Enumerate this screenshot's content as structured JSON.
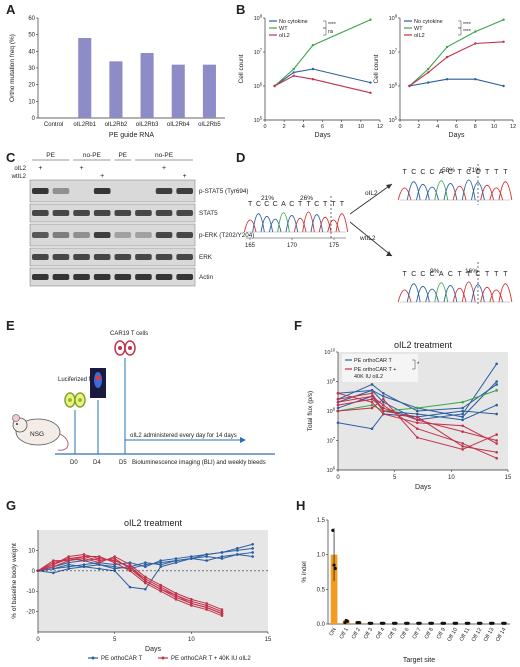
{
  "panels": {
    "A": {
      "letter": "A",
      "chart_data": {
        "type": "bar",
        "categories": [
          "Control",
          "oIL2Rb1",
          "oIL2Rb2",
          "oIL2Rb3",
          "oIL2Rb4",
          "oIL2Rb5"
        ],
        "values": [
          0,
          48,
          34,
          39,
          32,
          32
        ],
        "xlabel": "PE guide RNA",
        "ylabel": "Ortho mutation freq (%)",
        "ylim": [
          0,
          60
        ],
        "yticks": [
          0,
          10,
          20,
          30,
          40,
          50,
          60
        ],
        "color": "#8e8cc7"
      }
    },
    "B": {
      "letter": "B",
      "chart_data": [
        {
          "type": "line",
          "xlabel": "Days",
          "ylabel": "Cell count",
          "xlim": [
            0,
            12
          ],
          "xticks": [
            0,
            2,
            4,
            6,
            8,
            10,
            12
          ],
          "yticks": [
            "10^5",
            "10^6",
            "10^7",
            "10^8"
          ],
          "log_y": true,
          "legend": [
            "No cytokine",
            "WT",
            "oIL2"
          ],
          "sig": [
            "****",
            "ns"
          ],
          "series": [
            {
              "name": "No cytokine",
              "color": "#2c5fa0",
              "x": [
                1,
                3,
                5,
                11
              ],
              "y": [
                6.0,
                6.4,
                6.5,
                6.1
              ]
            },
            {
              "name": "WT",
              "color": "#3aa64a",
              "x": [
                1,
                3,
                5,
                11
              ],
              "y": [
                6.0,
                6.5,
                7.2,
                7.95
              ]
            },
            {
              "name": "oIL2",
              "color": "#c2324a",
              "x": [
                1,
                3,
                5,
                11
              ],
              "y": [
                6.0,
                6.3,
                6.2,
                5.8
              ]
            }
          ]
        },
        {
          "type": "line",
          "xlabel": "Days",
          "ylabel": "Cell count",
          "xlim": [
            0,
            12
          ],
          "xticks": [
            0,
            2,
            4,
            6,
            8,
            10,
            12
          ],
          "yticks": [
            "10^5",
            "10^6",
            "10^7",
            "10^8"
          ],
          "log_y": true,
          "legend": [
            "No cytokine",
            "WT",
            "oIL2"
          ],
          "sig": [
            "****",
            "****"
          ],
          "series": [
            {
              "name": "No cytokine",
              "color": "#2c5fa0",
              "x": [
                1,
                3,
                5,
                8,
                11
              ],
              "y": [
                6.0,
                6.1,
                6.2,
                6.2,
                6.0
              ]
            },
            {
              "name": "WT",
              "color": "#3aa64a",
              "x": [
                1,
                3,
                5,
                8,
                11
              ],
              "y": [
                6.0,
                6.5,
                7.15,
                7.6,
                7.95
              ]
            },
            {
              "name": "oIL2",
              "color": "#c2324a",
              "x": [
                1,
                3,
                5,
                8,
                11
              ],
              "y": [
                6.0,
                6.4,
                6.85,
                7.25,
                7.3
              ]
            }
          ]
        }
      ]
    },
    "C": {
      "letter": "C",
      "top_groups": [
        "PE",
        "no-PE",
        "PE",
        "no-PE"
      ],
      "row_labels": [
        "oIL2",
        "wtIL2"
      ],
      "oil2_marks": [
        "+",
        "",
        "+",
        "",
        "",
        "",
        "+",
        ""
      ],
      "wtil2_marks": [
        "",
        "",
        "",
        "+",
        "",
        "",
        "",
        "+"
      ],
      "bands": [
        "p-STAT5 (Tyr694)",
        "STAT5",
        "p-ERK (T202/Y204)",
        "ERK",
        "Actin"
      ]
    },
    "D": {
      "letter": "D",
      "seq_left": "TCCCACTTCTTT",
      "pct_left_a": "21%",
      "pct_left_b": "26%",
      "axis_ticks": [
        "165",
        "170",
        "175"
      ],
      "arrow_top": "oIL2",
      "arrow_bottom": "wtIL2",
      "seq_top": "TCCCACTCCTTT",
      "pct_top_a": "58%",
      "pct_top_b": "71%",
      "seq_bottom": "TCCCACTTCTTT",
      "pct_bottom_a": "9%",
      "pct_bottom_b": "16%"
    },
    "E": {
      "letter": "E",
      "mouse": "NSG",
      "tumor": "Luciferized Nalm6",
      "tcell": "CAR19 T cells",
      "d0": "D0",
      "d4": "D4",
      "d5": "D5",
      "admin": "oIL2 administered every day for 14 days",
      "imaging": "Bioluminescence imaging (BLI) and weekly bleeds"
    },
    "F": {
      "letter": "F",
      "chart_data": {
        "type": "line",
        "title": "oIL2 treatment",
        "xlabel": "Days",
        "ylabel": "Total flux (p/s)",
        "xlim": [
          0,
          15
        ],
        "xticks": [
          0,
          5,
          10,
          15
        ],
        "yticks": [
          "10^6",
          "10^7",
          "10^8",
          "10^9",
          "10^10"
        ],
        "log_y": true,
        "legend": [
          "PE orthoCAR T",
          "PE orthoCAR T +",
          "40K IU oIL2"
        ],
        "sig": "*",
        "series": [
          {
            "name": "PE orthoCAR T",
            "color": "#2c5fa0",
            "x": [
              0,
              3,
              4,
              7,
              11,
              14
            ],
            "y": [
              8.6,
              8.7,
              8.3,
              7.7,
              7.9,
              9.6
            ]
          },
          {
            "name": "PE orthoCAR T",
            "color": "#2c5fa0",
            "x": [
              0,
              3,
              4,
              7,
              11,
              14
            ],
            "y": [
              8.4,
              8.9,
              8.6,
              8.0,
              8.1,
              8.9
            ]
          },
          {
            "name": "PE orthoCAR T",
            "color": "#2c5fa0",
            "x": [
              0,
              3,
              4,
              7,
              11,
              14
            ],
            "y": [
              8.1,
              8.5,
              8.0,
              7.9,
              7.7,
              8.2
            ]
          },
          {
            "name": "PE orthoCAR T",
            "color": "#2c5fa0",
            "x": [
              0,
              3,
              4,
              7,
              11,
              14
            ],
            "y": [
              7.6,
              7.4,
              7.9,
              7.8,
              8.0,
              7.9
            ]
          },
          {
            "name": "PE orthoCAR T",
            "color": "#2c5fa0",
            "x": [
              0,
              3,
              4,
              7,
              11,
              14
            ],
            "y": [
              8.3,
              8.7,
              8.5,
              8.1,
              7.8,
              9.0
            ]
          },
          {
            "name": "PE orthoCAR T",
            "color": "#3aa64a",
            "x": [
              0,
              3,
              4,
              7,
              11,
              14
            ],
            "y": [
              8.0,
              8.2,
              8.0,
              8.1,
              8.3,
              8.7
            ]
          },
          {
            "name": "PE orthoCAR T + 40K IU oIL2",
            "color": "#c2324a",
            "x": [
              0,
              3,
              4,
              7,
              11,
              14
            ],
            "y": [
              8.3,
              8.5,
              8.2,
              7.4,
              6.9,
              6.4
            ]
          },
          {
            "name": "PE orthoCAR T + 40K IU oIL2",
            "color": "#c2324a",
            "x": [
              0,
              3,
              4,
              7,
              11,
              14
            ],
            "y": [
              8.6,
              8.3,
              7.9,
              7.6,
              7.5,
              6.9
            ]
          },
          {
            "name": "PE orthoCAR T + 40K IU oIL2",
            "color": "#c2324a",
            "x": [
              0,
              3,
              4,
              7,
              11,
              14
            ],
            "y": [
              8.0,
              8.1,
              8.4,
              7.1,
              6.7,
              7.2
            ]
          },
          {
            "name": "PE orthoCAR T + 40K IU oIL2",
            "color": "#c2324a",
            "x": [
              0,
              3,
              4,
              7,
              11,
              14
            ],
            "y": [
              8.4,
              8.6,
              8.0,
              7.8,
              6.8,
              6.6
            ]
          },
          {
            "name": "PE orthoCAR T + 40K IU oIL2",
            "color": "#c2324a",
            "x": [
              0,
              3,
              4,
              7,
              11,
              14
            ],
            "y": [
              8.2,
              8.4,
              8.1,
              7.7,
              7.3,
              7.0
            ]
          }
        ]
      }
    },
    "G": {
      "letter": "G",
      "chart_data": {
        "type": "line",
        "title": "oIL2 treatment",
        "xlabel": "Days",
        "ylabel": "% of baseline body weight",
        "xlim": [
          0,
          15
        ],
        "ylim": [
          -30,
          20
        ],
        "xticks": [
          0,
          5,
          10,
          15
        ],
        "yticks": [
          -20,
          -10,
          0,
          10
        ],
        "legend": [
          "PE orthoCAR T",
          "PE orthoCAR T + 40K IU oIL2"
        ],
        "series": [
          {
            "name": "PE orthoCAR T",
            "color": "#2c5fa0",
            "x": [
              0,
              1,
              2,
              3,
              4,
              5,
              6,
              7,
              8,
              9,
              10,
              11,
              12,
              13,
              14
            ],
            "y": [
              0,
              1,
              3,
              2,
              1,
              0,
              -8,
              -9,
              2,
              4,
              6,
              8,
              9,
              11,
              13
            ]
          },
          {
            "name": "PE orthoCAR T",
            "color": "#2c5fa0",
            "x": [
              0,
              1,
              2,
              3,
              4,
              5,
              6,
              7,
              8,
              9,
              10,
              11,
              12,
              13,
              14
            ],
            "y": [
              0,
              2,
              4,
              5,
              3,
              2,
              1,
              3,
              4,
              5,
              6,
              5,
              7,
              8,
              7
            ]
          },
          {
            "name": "PE orthoCAR T",
            "color": "#2c5fa0",
            "x": [
              0,
              1,
              2,
              3,
              4,
              5,
              6,
              7,
              8,
              9,
              10,
              11,
              12,
              13,
              14
            ],
            "y": [
              0,
              1,
              2,
              3,
              4,
              3,
              4,
              2,
              5,
              6,
              7,
              8,
              9,
              10,
              11
            ]
          },
          {
            "name": "PE orthoCAR T",
            "color": "#2c5fa0",
            "x": [
              0,
              1,
              2,
              3,
              4,
              5,
              6,
              7,
              8,
              9,
              10,
              11,
              12,
              13,
              14
            ],
            "y": [
              0,
              -1,
              1,
              2,
              3,
              1,
              2,
              4,
              3,
              5,
              6,
              7,
              6,
              8,
              9
            ]
          },
          {
            "name": "PE orthoCAR T + 40K IU oIL2",
            "color": "#c2324a",
            "x": [
              0,
              1,
              2,
              3,
              4,
              5,
              6,
              7,
              8,
              9,
              10,
              11,
              12
            ],
            "y": [
              0,
              4,
              6,
              7,
              5,
              6,
              1,
              -5,
              -9,
              -13,
              -16,
              -18,
              -21
            ]
          },
          {
            "name": "PE orthoCAR T + 40K IU oIL2",
            "color": "#c2324a",
            "x": [
              0,
              1,
              2,
              3,
              4,
              5,
              6,
              7,
              8,
              9,
              10,
              11,
              12
            ],
            "y": [
              0,
              3,
              7,
              8,
              6,
              5,
              2,
              -4,
              -8,
              -12,
              -15,
              -17,
              -20
            ]
          },
          {
            "name": "PE orthoCAR T + 40K IU oIL2",
            "color": "#c2324a",
            "x": [
              0,
              1,
              2,
              3,
              4,
              5,
              6,
              7,
              8,
              9,
              10,
              11,
              12
            ],
            "y": [
              0,
              2,
              5,
              6,
              4,
              7,
              3,
              -3,
              -7,
              -11,
              -14,
              -16,
              -19
            ]
          },
          {
            "name": "PE orthoCAR T + 40K IU oIL2",
            "color": "#c2324a",
            "x": [
              0,
              1,
              2,
              3,
              4,
              5,
              6,
              7,
              8,
              9,
              10,
              11,
              12
            ],
            "y": [
              0,
              5,
              5,
              7,
              7,
              4,
              0,
              -6,
              -10,
              -14,
              -17,
              -19,
              -22
            ]
          },
          {
            "name": "PE orthoCAR T + 40K IU oIL2",
            "color": "#c2324a",
            "x": [
              0,
              1,
              2,
              3,
              4,
              5,
              6,
              7,
              8,
              9,
              10,
              11,
              12
            ],
            "y": [
              0,
              3,
              6,
              5,
              6,
              5,
              2,
              -5,
              -9,
              -12,
              -16,
              -18,
              -21
            ]
          }
        ]
      }
    },
    "H": {
      "letter": "H",
      "chart_data": {
        "type": "bar",
        "categories": [
          "ON",
          "Off 1",
          "Off 2",
          "Off 3",
          "Off 4",
          "Off 5",
          "Off 6",
          "Off 7",
          "Off 8",
          "Off 9",
          "Off 10",
          "Off 11",
          "Off 12",
          "Off 13",
          "Off 14"
        ],
        "values": [
          1.0,
          0.05,
          0.02,
          0.01,
          0.01,
          0.01,
          0.01,
          0.01,
          0.01,
          0.01,
          0.01,
          0.01,
          0.01,
          0.01,
          0.01
        ],
        "points": [
          [
            1.35,
            0.85,
            0.8
          ],
          [
            0.02,
            0.05,
            0.04
          ]
        ],
        "xlabel": "Target site",
        "ylabel": "% indel",
        "ylim": [
          0,
          1.5
        ],
        "yticks": [
          0.0,
          0.5,
          1.0,
          1.5
        ],
        "color_on": "#f39c1f",
        "color_off": "#e58a1c"
      }
    }
  }
}
